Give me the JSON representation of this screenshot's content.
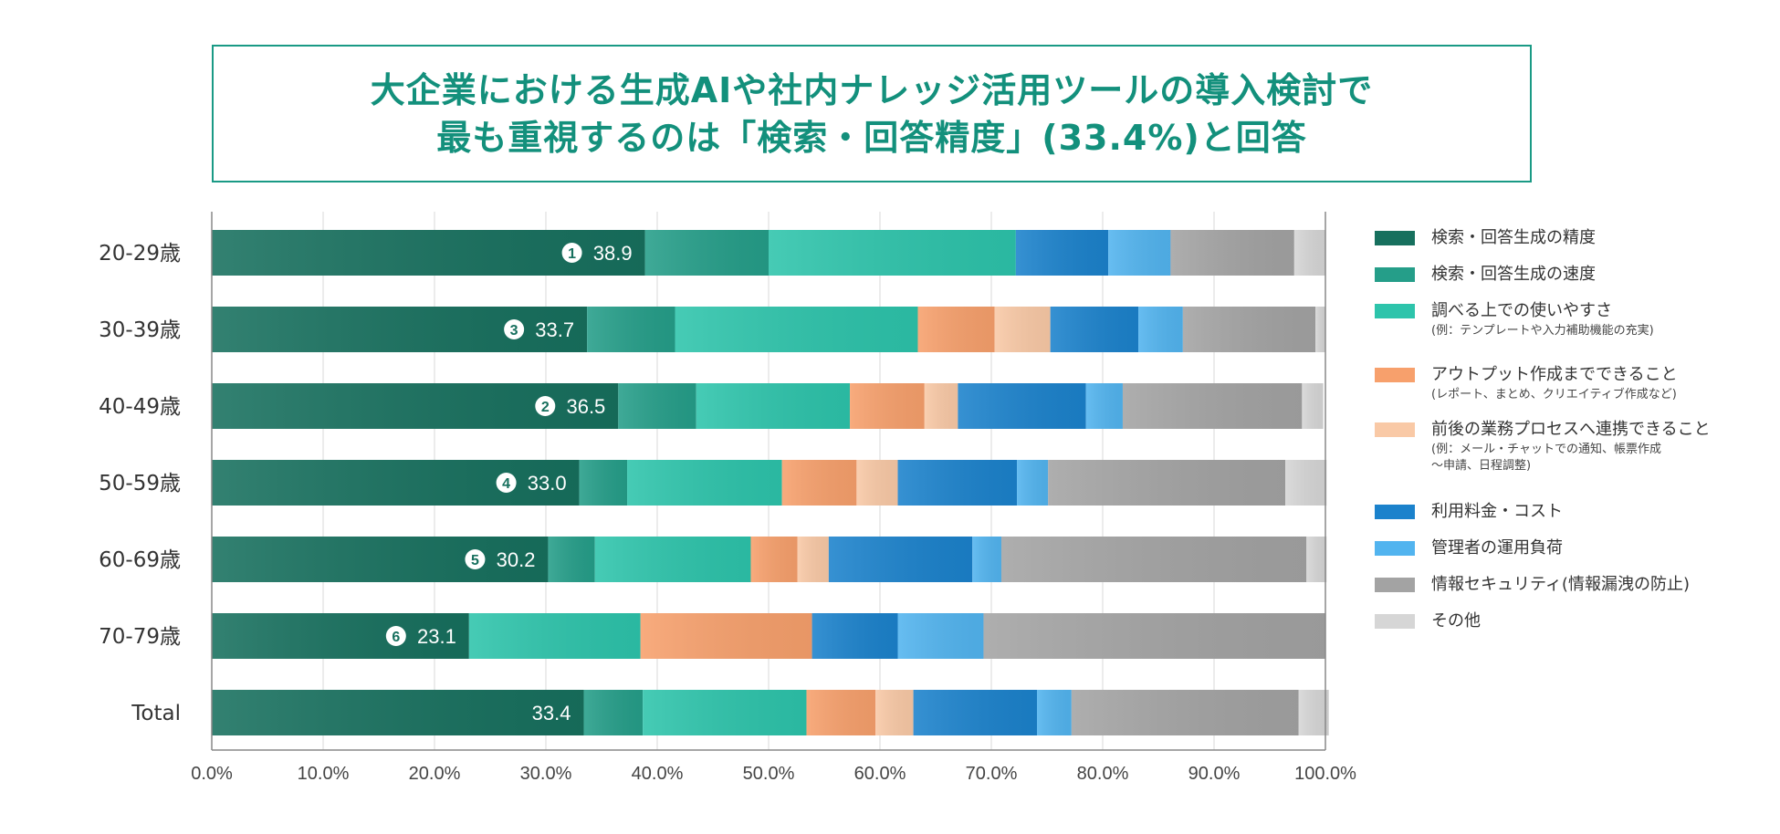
{
  "title": {
    "line1": "大企業における生成AIや社内ナレッジ活用ツールの導入検討で",
    "line2": "最も重視するのは「検索・回答精度」(33.4%)と回答"
  },
  "legend": [
    {
      "label": "検索・回答生成の精度",
      "note": ""
    },
    {
      "label": "検索・回答生成の速度",
      "note": ""
    },
    {
      "label": "調べる上での使いやすさ",
      "note": "(例：テンプレートや入力補助機能の充実)"
    },
    {
      "label": "アウトプット作成までできること",
      "note": "(レポート、まとめ、クリエイティブ作成など)"
    },
    {
      "label": "前後の業務プロセスへ連携できること",
      "note": "(例：メール・チャットでの通知、帳票作成\n〜申請、日程調整)"
    },
    {
      "label": "利用料金・コスト",
      "note": ""
    },
    {
      "label": "管理者の運用負荷",
      "note": ""
    },
    {
      "label": "情報セキュリティ(情報漏洩の防止)",
      "note": ""
    },
    {
      "label": "その他",
      "note": ""
    }
  ],
  "chart_data": {
    "type": "bar",
    "orientation": "horizontal",
    "stacked": true,
    "title": "大企業における生成AIや社内ナレッジ活用ツールの導入検討で最も重視するのは「検索・回答精度」(33.4%)と回答",
    "categories": [
      "20-29歳",
      "30-39歳",
      "40-49歳",
      "50-59歳",
      "60-69歳",
      "70-79歳",
      "Total"
    ],
    "series": [
      {
        "name": "検索・回答生成の精度",
        "color": "#17705e",
        "values": [
          38.9,
          33.7,
          36.5,
          33.0,
          30.2,
          23.1,
          33.4
        ]
      },
      {
        "name": "検索・回答生成の速度",
        "color": "#259e89",
        "values": [
          11.1,
          7.9,
          7.0,
          4.3,
          4.2,
          0.0,
          5.3
        ]
      },
      {
        "name": "調べる上での使いやすさ",
        "color": "#2dc4ab",
        "values": [
          22.2,
          21.8,
          13.8,
          13.9,
          14.0,
          15.4,
          14.7
        ]
      },
      {
        "name": "アウトプット作成までできること",
        "color": "#f7a06c",
        "values": [
          0.0,
          6.9,
          6.7,
          6.7,
          4.2,
          15.4,
          6.2
        ]
      },
      {
        "name": "前後の業務プロセスへ連携できること",
        "color": "#f9c9a6",
        "values": [
          0.0,
          5.0,
          3.0,
          3.7,
          2.8,
          0.0,
          3.4
        ]
      },
      {
        "name": "利用料金・コスト",
        "color": "#1b82cc",
        "values": [
          8.3,
          7.9,
          11.5,
          10.7,
          12.9,
          7.7,
          11.1
        ]
      },
      {
        "name": "管理者の運用負荷",
        "color": "#52b4ef",
        "values": [
          5.6,
          4.0,
          3.3,
          2.8,
          2.6,
          7.7,
          3.1
        ]
      },
      {
        "name": "情報セキュリティ(情報漏洩の防止)",
        "color": "#a3a3a3",
        "values": [
          11.1,
          11.9,
          16.1,
          21.3,
          27.4,
          30.7,
          20.4
        ]
      },
      {
        "name": "その他",
        "color": "#d6d6d6",
        "values": [
          2.8,
          0.9,
          1.9,
          3.7,
          1.8,
          0.0,
          2.7
        ]
      }
    ],
    "data_labels": [
      {
        "rank": "1",
        "value": "38.9"
      },
      {
        "rank": "3",
        "value": "33.7"
      },
      {
        "rank": "2",
        "value": "36.5"
      },
      {
        "rank": "4",
        "value": "33.0"
      },
      {
        "rank": "5",
        "value": "30.2"
      },
      {
        "rank": "6",
        "value": "23.1"
      },
      {
        "rank": "",
        "value": "33.4"
      }
    ],
    "x_ticks": [
      "0.0%",
      "10.0%",
      "20.0%",
      "30.0%",
      "40.0%",
      "50.0%",
      "60.0%",
      "70.0%",
      "80.0%",
      "90.0%",
      "100.0%"
    ],
    "xlim": [
      0,
      100
    ],
    "grid": true,
    "legend_position": "right",
    "xlabel": "",
    "ylabel": ""
  }
}
